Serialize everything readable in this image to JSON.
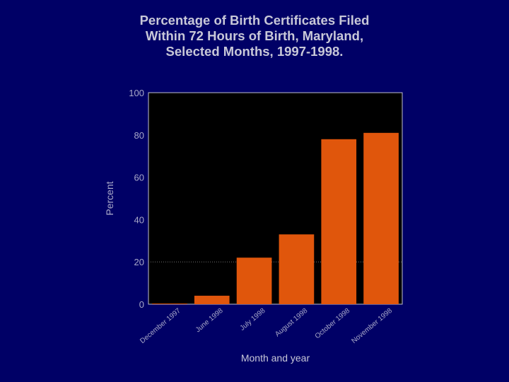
{
  "chart_data": {
    "type": "bar",
    "title_lines": [
      "Percentage of Birth Certificates Filed",
      "Within 72 Hours of Birth, Maryland,",
      "Selected Months, 1997-1998."
    ],
    "xlabel": "Month and year",
    "ylabel": "Percent",
    "ylim": [
      0,
      100
    ],
    "yticks": [
      0,
      20,
      40,
      60,
      80,
      100
    ],
    "categories": [
      "December 1997",
      "June 1998",
      "July 1998",
      "August 1998",
      "October 1998",
      "November 1998"
    ],
    "values": [
      0.3,
      4,
      22,
      33,
      78,
      81
    ],
    "grid": "horizontal dotted at 20",
    "colors": {
      "background": "#000066",
      "plot_area": "#000000",
      "bar": "#e0560c",
      "text": "#c8c8d8",
      "axis_text": "#a8a8c8"
    }
  }
}
